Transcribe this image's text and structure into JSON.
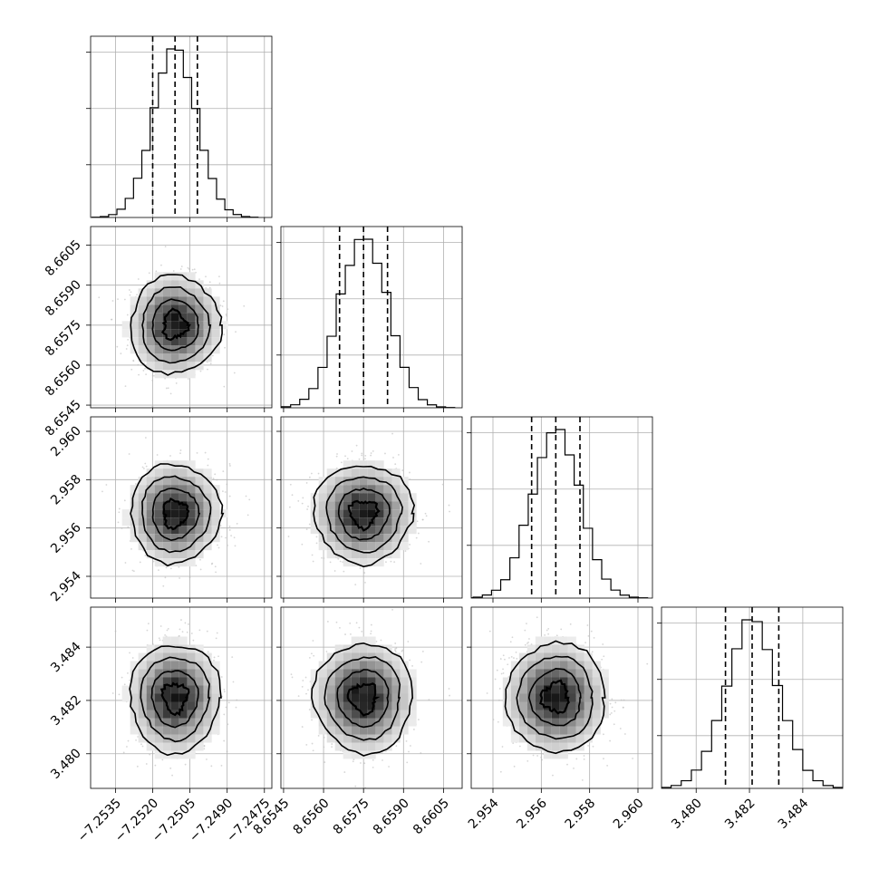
{
  "chart_data": {
    "type": "corner",
    "grid": true,
    "colors": {
      "hist": "#000000",
      "contour": "#000000",
      "scatter": "#bbbbbb",
      "grid": "#b0b0b0"
    },
    "parameters": [
      {
        "range": [
          -7.2545,
          -7.2472
        ],
        "ticks": [
          -7.2535,
          -7.252,
          -7.2505,
          -7.249,
          -7.2475
        ],
        "tick_labels": [
          "−7.2535",
          "−7.2520",
          "−7.2505",
          "−7.2490",
          "−7.2475"
        ],
        "quantiles": [
          -7.252,
          -7.2511,
          -7.2502
        ],
        "mean": -7.2511,
        "sigma": 0.00088,
        "hist_peak": 0.93
      },
      {
        "range": [
          8.6544,
          8.6612
        ],
        "ticks": [
          8.6545,
          8.656,
          8.6575,
          8.659,
          8.6605
        ],
        "tick_labels": [
          "8.6545",
          "8.6560",
          "8.6575",
          "8.6590",
          "8.6605"
        ],
        "quantiles": [
          8.6566,
          8.6575,
          8.6584
        ],
        "mean": 8.6575,
        "sigma": 0.0009,
        "hist_peak": 0.93
      },
      {
        "range": [
          2.9531,
          2.9606
        ],
        "ticks": [
          2.954,
          2.956,
          2.958,
          2.96
        ],
        "tick_labels": [
          "2.954",
          "2.956",
          "2.958",
          "2.960"
        ],
        "quantiles": [
          2.9556,
          2.9566,
          2.9576
        ],
        "mean": 2.9566,
        "sigma": 0.001,
        "hist_peak": 0.93
      },
      {
        "range": [
          3.4787,
          3.4855
        ],
        "ticks": [
          3.48,
          3.482,
          3.484
        ],
        "tick_labels": [
          "3.480",
          "3.482",
          "3.484"
        ],
        "quantiles": [
          3.4811,
          3.4821,
          3.4831
        ],
        "mean": 3.4821,
        "sigma": 0.001,
        "hist_peak": 0.93
      }
    ],
    "histogram_bins": 20
  }
}
